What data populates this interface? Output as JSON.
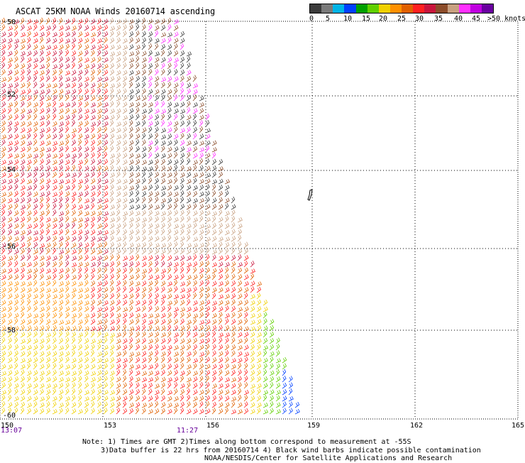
{
  "title": "ASCAT 25KM NOAA Winds 20160714 ascending",
  "legend": {
    "colors": [
      "#3b3b3b",
      "#7a7a7a",
      "#00b4e6",
      "#0040ff",
      "#00a000",
      "#60d000",
      "#f0d000",
      "#ff9000",
      "#e06000",
      "#ff2020",
      "#c8143c",
      "#8b4c2a",
      "#c8a080",
      "#ff30ff",
      "#c000e0",
      "#6a00a0"
    ],
    "labels": [
      "0",
      "5",
      "10",
      "15",
      "20",
      "25",
      "30",
      "35",
      "40",
      "45",
      ">50 knots"
    ]
  },
  "latitudes": [
    "-50",
    "-52",
    "-54",
    "-56",
    "-58",
    "-60"
  ],
  "longitudes": [
    "150",
    "153",
    "156",
    "159",
    "162",
    "165"
  ],
  "times": [
    "13:07",
    "11:27"
  ],
  "note": {
    "line1": "Note: 1) Times are GMT 2)Times along bottom correspond to measurement at -55S",
    "line2": "3)Data buffer is 22 hrs from 20160714 4) Black wind barbs indicate possible contamination",
    "line3": "NOAA/NESDIS/Center for Satellite Applications and Research"
  },
  "map": {
    "lat_range": [
      -60,
      -50
    ],
    "lon_range": [
      150,
      165
    ]
  }
}
